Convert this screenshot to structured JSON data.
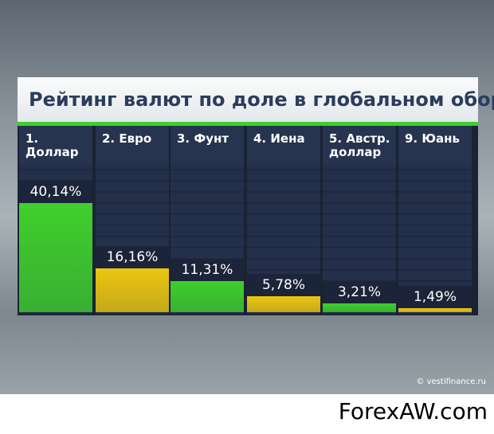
{
  "chart_data": {
    "type": "bar",
    "title": "Рейтинг валют по доле в глобальном обороте",
    "categories": [
      "1. Доллар",
      "2. Евро",
      "3. Фунт",
      "4. Иена",
      "5. Австр. доллар",
      "9. Юань"
    ],
    "values": [
      40.14,
      16.16,
      11.31,
      5.78,
      3.21,
      1.49
    ],
    "value_labels": [
      "40,14%",
      "16,16%",
      "11,31%",
      "5,78%",
      "3,21%",
      "1,49%"
    ],
    "colors": [
      "#3fcf2c",
      "#ecc610",
      "#3fcf2c",
      "#ecc610",
      "#3fcf2c",
      "#ecc610"
    ]
  },
  "watermarks": {
    "source": "© vestifinance.ru",
    "site": "ForexAW.com"
  }
}
